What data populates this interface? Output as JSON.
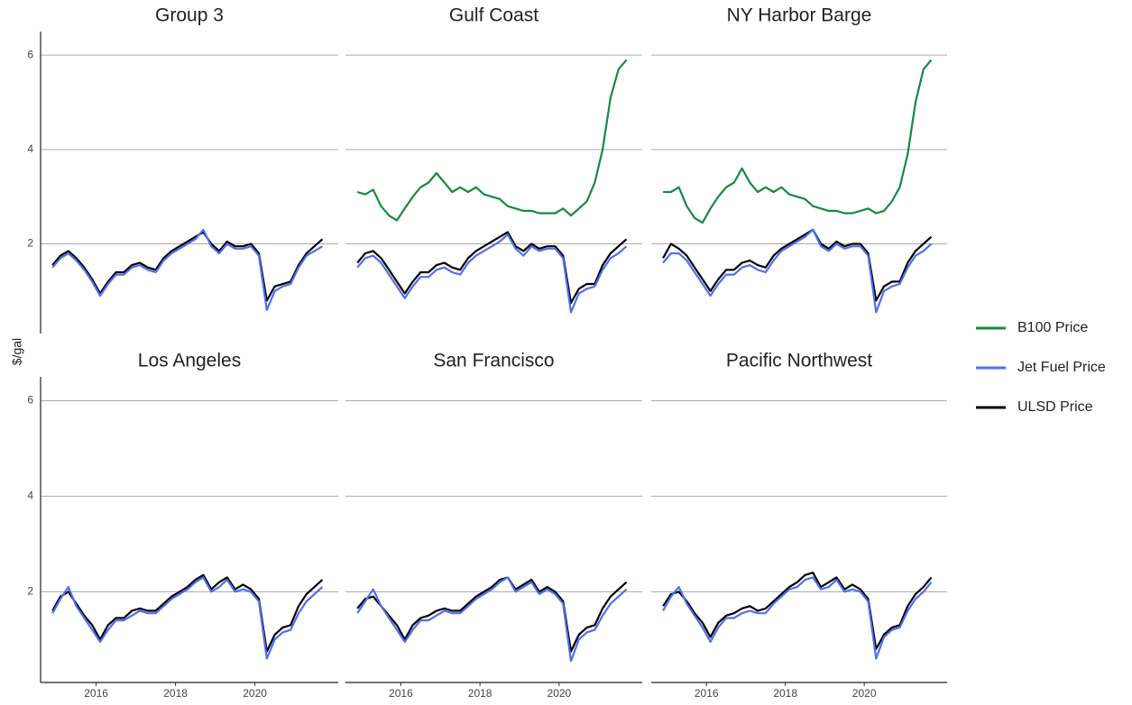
{
  "chart_data": [
    {
      "type": "line",
      "title": "Group 3",
      "ylabel": "$/gal",
      "x": [
        2014.9,
        2015.1,
        2015.3,
        2015.5,
        2015.7,
        2015.9,
        2016.1,
        2016.3,
        2016.5,
        2016.7,
        2016.9,
        2017.1,
        2017.3,
        2017.5,
        2017.7,
        2017.9,
        2018.1,
        2018.3,
        2018.5,
        2018.7,
        2018.9,
        2019.1,
        2019.3,
        2019.5,
        2019.7,
        2019.9,
        2020.1,
        2020.3,
        2020.5,
        2020.7,
        2020.9,
        2021.1,
        2021.3,
        2021.5,
        2021.7
      ],
      "xlim": [
        2014.6,
        2022.1
      ],
      "ylim": [
        0.1,
        6.5
      ],
      "yticks": [
        2,
        4,
        6
      ],
      "grid": true,
      "series": [
        {
          "name": "Jet Fuel Price",
          "color": "#4f6ff0",
          "values": [
            1.5,
            1.7,
            1.8,
            1.65,
            1.45,
            1.2,
            0.9,
            1.15,
            1.35,
            1.35,
            1.5,
            1.55,
            1.45,
            1.4,
            1.65,
            1.8,
            1.9,
            2.0,
            2.1,
            2.3,
            1.95,
            1.8,
            2.0,
            1.9,
            1.9,
            1.95,
            1.75,
            0.6,
            1.0,
            1.1,
            1.15,
            1.5,
            1.75,
            1.85,
            1.95
          ]
        },
        {
          "name": "ULSD Price",
          "color": "#000000",
          "values": [
            1.55,
            1.75,
            1.85,
            1.7,
            1.5,
            1.25,
            0.95,
            1.2,
            1.4,
            1.4,
            1.55,
            1.6,
            1.5,
            1.45,
            1.7,
            1.85,
            1.95,
            2.05,
            2.15,
            2.25,
            2.0,
            1.85,
            2.05,
            1.95,
            1.95,
            2.0,
            1.8,
            0.8,
            1.1,
            1.15,
            1.2,
            1.55,
            1.8,
            1.95,
            2.1
          ]
        }
      ]
    },
    {
      "type": "line",
      "title": "Gulf Coast",
      "x": [
        2014.9,
        2015.1,
        2015.3,
        2015.5,
        2015.7,
        2015.9,
        2016.1,
        2016.3,
        2016.5,
        2016.7,
        2016.9,
        2017.1,
        2017.3,
        2017.5,
        2017.7,
        2017.9,
        2018.1,
        2018.3,
        2018.5,
        2018.7,
        2018.9,
        2019.1,
        2019.3,
        2019.5,
        2019.7,
        2019.9,
        2020.1,
        2020.3,
        2020.5,
        2020.7,
        2020.9,
        2021.1,
        2021.3,
        2021.5,
        2021.7
      ],
      "xlim": [
        2014.6,
        2022.1
      ],
      "ylim": [
        0.1,
        6.5
      ],
      "yticks": [
        2,
        4,
        6
      ],
      "grid": true,
      "series": [
        {
          "name": "B100 Price",
          "color": "#17893f",
          "values": [
            3.1,
            3.05,
            3.15,
            2.8,
            2.6,
            2.5,
            2.75,
            3.0,
            3.2,
            3.3,
            3.5,
            3.3,
            3.1,
            3.2,
            3.1,
            3.2,
            3.05,
            3.0,
            2.95,
            2.8,
            2.75,
            2.7,
            2.7,
            2.65,
            2.65,
            2.65,
            2.75,
            2.6,
            2.75,
            2.9,
            3.3,
            4.0,
            5.1,
            5.7,
            5.9
          ]
        },
        {
          "name": "Jet Fuel Price",
          "color": "#4f6ff0",
          "values": [
            1.5,
            1.7,
            1.75,
            1.6,
            1.35,
            1.1,
            0.85,
            1.1,
            1.3,
            1.3,
            1.45,
            1.5,
            1.4,
            1.35,
            1.6,
            1.75,
            1.85,
            1.95,
            2.05,
            2.2,
            1.9,
            1.75,
            1.95,
            1.85,
            1.9,
            1.9,
            1.7,
            0.55,
            0.95,
            1.05,
            1.1,
            1.45,
            1.7,
            1.8,
            1.95
          ]
        },
        {
          "name": "ULSD Price",
          "color": "#000000",
          "values": [
            1.6,
            1.8,
            1.85,
            1.7,
            1.45,
            1.2,
            0.95,
            1.2,
            1.4,
            1.4,
            1.55,
            1.6,
            1.5,
            1.45,
            1.7,
            1.85,
            1.95,
            2.05,
            2.15,
            2.25,
            1.95,
            1.85,
            2.0,
            1.9,
            1.95,
            1.95,
            1.75,
            0.75,
            1.05,
            1.15,
            1.15,
            1.55,
            1.8,
            1.95,
            2.1
          ]
        }
      ]
    },
    {
      "type": "line",
      "title": "NY Harbor Barge",
      "x": [
        2014.9,
        2015.1,
        2015.3,
        2015.5,
        2015.7,
        2015.9,
        2016.1,
        2016.3,
        2016.5,
        2016.7,
        2016.9,
        2017.1,
        2017.3,
        2017.5,
        2017.7,
        2017.9,
        2018.1,
        2018.3,
        2018.5,
        2018.7,
        2018.9,
        2019.1,
        2019.3,
        2019.5,
        2019.7,
        2019.9,
        2020.1,
        2020.3,
        2020.5,
        2020.7,
        2020.9,
        2021.1,
        2021.3,
        2021.5,
        2021.7
      ],
      "xlim": [
        2014.6,
        2022.1
      ],
      "ylim": [
        0.1,
        6.5
      ],
      "yticks": [
        2,
        4,
        6
      ],
      "grid": true,
      "series": [
        {
          "name": "B100 Price",
          "color": "#17893f",
          "values": [
            3.1,
            3.1,
            3.2,
            2.8,
            2.55,
            2.45,
            2.75,
            3.0,
            3.2,
            3.3,
            3.6,
            3.3,
            3.1,
            3.2,
            3.1,
            3.2,
            3.05,
            3.0,
            2.95,
            2.8,
            2.75,
            2.7,
            2.7,
            2.65,
            2.65,
            2.7,
            2.75,
            2.65,
            2.7,
            2.9,
            3.2,
            3.9,
            5.0,
            5.7,
            5.9
          ]
        },
        {
          "name": "Jet Fuel Price",
          "color": "#4f6ff0",
          "values": [
            1.6,
            1.8,
            1.8,
            1.65,
            1.4,
            1.15,
            0.9,
            1.15,
            1.35,
            1.35,
            1.5,
            1.55,
            1.45,
            1.4,
            1.65,
            1.85,
            1.95,
            2.05,
            2.15,
            2.3,
            1.95,
            1.85,
            2.0,
            1.9,
            1.95,
            1.95,
            1.75,
            0.55,
            1.0,
            1.1,
            1.15,
            1.5,
            1.75,
            1.85,
            2.0
          ]
        },
        {
          "name": "ULSD Price",
          "color": "#000000",
          "values": [
            1.7,
            2.0,
            1.9,
            1.75,
            1.5,
            1.25,
            1.0,
            1.25,
            1.45,
            1.45,
            1.6,
            1.65,
            1.55,
            1.5,
            1.75,
            1.9,
            2.0,
            2.1,
            2.2,
            2.3,
            2.0,
            1.9,
            2.05,
            1.95,
            2.0,
            2.0,
            1.8,
            0.8,
            1.1,
            1.2,
            1.2,
            1.6,
            1.85,
            2.0,
            2.15
          ]
        }
      ]
    },
    {
      "type": "line",
      "title": "Los Angeles",
      "x": [
        2014.9,
        2015.1,
        2015.3,
        2015.5,
        2015.7,
        2015.9,
        2016.1,
        2016.3,
        2016.5,
        2016.7,
        2016.9,
        2017.1,
        2017.3,
        2017.5,
        2017.7,
        2017.9,
        2018.1,
        2018.3,
        2018.5,
        2018.7,
        2018.9,
        2019.1,
        2019.3,
        2019.5,
        2019.7,
        2019.9,
        2020.1,
        2020.3,
        2020.5,
        2020.7,
        2020.9,
        2021.1,
        2021.3,
        2021.5,
        2021.7
      ],
      "xlim": [
        2014.6,
        2022.1
      ],
      "ylim": [
        0.1,
        6.5
      ],
      "yticks": [
        2,
        4,
        6
      ],
      "xticks": [
        2016,
        2018,
        2020
      ],
      "grid": true,
      "series": [
        {
          "name": "Jet Fuel Price",
          "color": "#4f6ff0",
          "values": [
            1.55,
            1.85,
            2.1,
            1.7,
            1.45,
            1.2,
            0.95,
            1.2,
            1.4,
            1.4,
            1.5,
            1.6,
            1.55,
            1.55,
            1.7,
            1.85,
            1.95,
            2.05,
            2.2,
            2.3,
            2.0,
            2.1,
            2.25,
            2.0,
            2.05,
            2.0,
            1.8,
            0.6,
            1.0,
            1.15,
            1.2,
            1.55,
            1.8,
            1.95,
            2.1
          ]
        },
        {
          "name": "ULSD Price",
          "color": "#000000",
          "values": [
            1.6,
            1.9,
            2.0,
            1.75,
            1.5,
            1.3,
            1.0,
            1.3,
            1.45,
            1.45,
            1.6,
            1.65,
            1.6,
            1.6,
            1.75,
            1.9,
            2.0,
            2.1,
            2.25,
            2.35,
            2.05,
            2.2,
            2.3,
            2.05,
            2.15,
            2.05,
            1.85,
            0.75,
            1.1,
            1.25,
            1.3,
            1.7,
            1.95,
            2.1,
            2.25
          ]
        }
      ]
    },
    {
      "type": "line",
      "title": "San Francisco",
      "x": [
        2014.9,
        2015.1,
        2015.3,
        2015.5,
        2015.7,
        2015.9,
        2016.1,
        2016.3,
        2016.5,
        2016.7,
        2016.9,
        2017.1,
        2017.3,
        2017.5,
        2017.7,
        2017.9,
        2018.1,
        2018.3,
        2018.5,
        2018.7,
        2018.9,
        2019.1,
        2019.3,
        2019.5,
        2019.7,
        2019.9,
        2020.1,
        2020.3,
        2020.5,
        2020.7,
        2020.9,
        2021.1,
        2021.3,
        2021.5,
        2021.7
      ],
      "xlim": [
        2014.6,
        2022.1
      ],
      "ylim": [
        0.1,
        6.5
      ],
      "yticks": [
        2,
        4,
        6
      ],
      "xticks": [
        2016,
        2018,
        2020
      ],
      "grid": true,
      "series": [
        {
          "name": "Jet Fuel Price",
          "color": "#4f6ff0",
          "values": [
            1.55,
            1.8,
            2.05,
            1.7,
            1.45,
            1.2,
            0.95,
            1.2,
            1.4,
            1.4,
            1.5,
            1.6,
            1.55,
            1.55,
            1.7,
            1.85,
            1.95,
            2.05,
            2.2,
            2.3,
            2.0,
            2.1,
            2.2,
            1.95,
            2.05,
            1.95,
            1.75,
            0.55,
            1.0,
            1.15,
            1.2,
            1.5,
            1.75,
            1.9,
            2.05
          ]
        },
        {
          "name": "ULSD Price",
          "color": "#000000",
          "values": [
            1.65,
            1.85,
            1.9,
            1.7,
            1.5,
            1.3,
            1.0,
            1.3,
            1.45,
            1.5,
            1.6,
            1.65,
            1.6,
            1.6,
            1.75,
            1.9,
            2.0,
            2.1,
            2.25,
            2.3,
            2.05,
            2.15,
            2.25,
            2.0,
            2.1,
            2.0,
            1.8,
            0.75,
            1.1,
            1.25,
            1.3,
            1.65,
            1.9,
            2.05,
            2.2
          ]
        }
      ]
    },
    {
      "type": "line",
      "title": "Pacific Northwest",
      "x": [
        2014.9,
        2015.1,
        2015.3,
        2015.5,
        2015.7,
        2015.9,
        2016.1,
        2016.3,
        2016.5,
        2016.7,
        2016.9,
        2017.1,
        2017.3,
        2017.5,
        2017.7,
        2017.9,
        2018.1,
        2018.3,
        2018.5,
        2018.7,
        2018.9,
        2019.1,
        2019.3,
        2019.5,
        2019.7,
        2019.9,
        2020.1,
        2020.3,
        2020.5,
        2020.7,
        2020.9,
        2021.1,
        2021.3,
        2021.5,
        2021.7
      ],
      "xlim": [
        2014.6,
        2022.1
      ],
      "ylim": [
        0.1,
        6.5
      ],
      "yticks": [
        2,
        4,
        6
      ],
      "xticks": [
        2016,
        2018,
        2020
      ],
      "grid": true,
      "series": [
        {
          "name": "Jet Fuel Price",
          "color": "#4f6ff0",
          "values": [
            1.6,
            1.9,
            2.1,
            1.75,
            1.5,
            1.25,
            0.95,
            1.25,
            1.45,
            1.45,
            1.55,
            1.6,
            1.55,
            1.55,
            1.75,
            1.9,
            2.05,
            2.1,
            2.25,
            2.3,
            2.05,
            2.1,
            2.25,
            2.0,
            2.05,
            2.0,
            1.8,
            0.6,
            1.05,
            1.2,
            1.25,
            1.6,
            1.85,
            2.0,
            2.2
          ]
        },
        {
          "name": "ULSD Price",
          "color": "#000000",
          "values": [
            1.7,
            1.95,
            2.0,
            1.8,
            1.55,
            1.35,
            1.05,
            1.35,
            1.5,
            1.55,
            1.65,
            1.7,
            1.6,
            1.65,
            1.8,
            1.95,
            2.1,
            2.2,
            2.35,
            2.4,
            2.1,
            2.2,
            2.3,
            2.05,
            2.15,
            2.05,
            1.85,
            0.8,
            1.1,
            1.25,
            1.3,
            1.7,
            1.95,
            2.1,
            2.3
          ]
        }
      ]
    }
  ]
}
